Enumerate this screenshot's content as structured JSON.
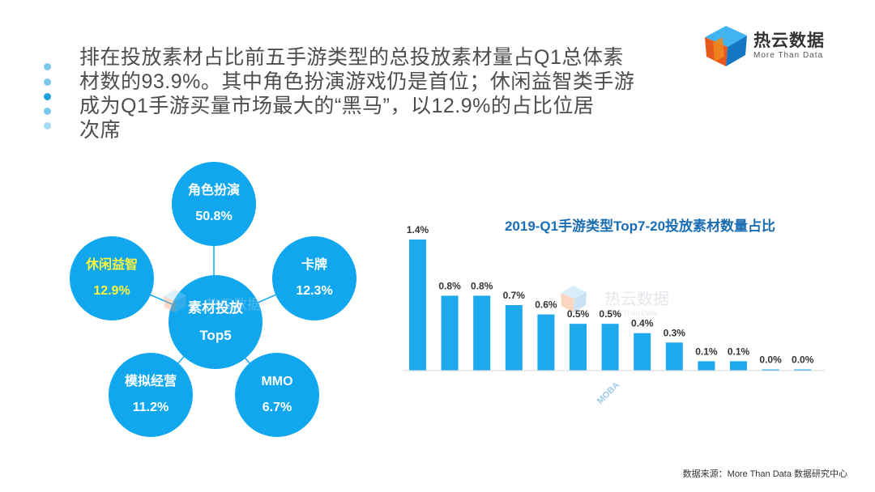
{
  "heading": {
    "lines": [
      "排在投放素材占比前五手游类型的总投放素材量占Q1总体素",
      "材数的93.9%。其中角色扮演游戏仍是首位；休闲益智类手游",
      "成为Q1手游买量市场最大的“黑马”，以12.9%的占比位居",
      "次席"
    ]
  },
  "logo": {
    "name": "热云数据",
    "sub": "More Than Data"
  },
  "watermark": {
    "name": "热云数据",
    "sub": "More Than Data"
  },
  "top5": {
    "center": {
      "line1": "素材投放",
      "line2": "Top5"
    },
    "items": [
      {
        "name": "角色扮演",
        "value": "50.8%"
      },
      {
        "name": "卡牌",
        "value": "12.3%"
      },
      {
        "name": "MMO",
        "value": "6.7%"
      },
      {
        "name": "模拟经营",
        "value": "11.2%"
      },
      {
        "name": "休闲益智",
        "value": "12.9%"
      }
    ]
  },
  "colors": {
    "bubble": "#10a7ee",
    "highlight": "#fff43a",
    "bar": "#1ea9ec",
    "title": "#1a6db3"
  },
  "chart_data": {
    "type": "bar",
    "title": "2019-Q1手游类型Top7-20投放素材数量占比",
    "categories": [
      "",
      "",
      "",
      "",
      "",
      "",
      "",
      "",
      "",
      "",
      "",
      "",
      ""
    ],
    "visible_category_label": {
      "index": 6,
      "text": "MOBA"
    },
    "values": [
      1.4,
      0.8,
      0.8,
      0.7,
      0.6,
      0.5,
      0.5,
      0.4,
      0.3,
      0.1,
      0.1,
      0.0,
      0.0
    ],
    "value_labels": [
      "1.4%",
      "0.8%",
      "0.8%",
      "0.7%",
      "0.6%",
      "0.5%",
      "0.5%",
      "0.4%",
      "0.3%",
      "0.1%",
      "0.1%",
      "0.0%",
      "0.0%"
    ],
    "ylim": [
      0,
      1.4
    ],
    "xlabel": "",
    "ylabel": ""
  },
  "source": "数据来源：More Than Data 数据研究中心"
}
